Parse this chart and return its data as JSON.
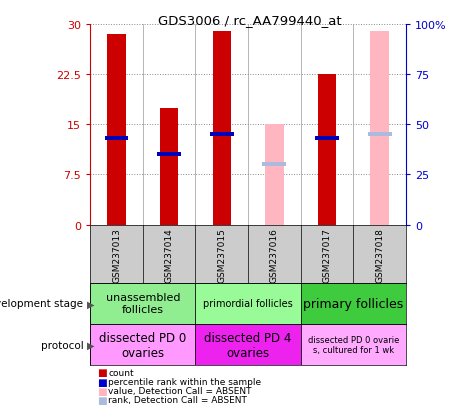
{
  "title": "GDS3006 / rc_AA799440_at",
  "samples": [
    "GSM237013",
    "GSM237014",
    "GSM237015",
    "GSM237016",
    "GSM237017",
    "GSM237018"
  ],
  "red_bars": [
    28.5,
    17.5,
    29.0,
    null,
    22.5,
    null
  ],
  "pink_bars": [
    null,
    null,
    null,
    15.0,
    null,
    29.0
  ],
  "blue_markers": [
    13.0,
    10.5,
    13.5,
    null,
    13.0,
    null
  ],
  "light_blue_markers": [
    null,
    null,
    null,
    9.0,
    null,
    13.5
  ],
  "ylim_left": [
    0,
    30
  ],
  "ylim_right": [
    0,
    100
  ],
  "yticks_left": [
    0,
    7.5,
    15,
    22.5,
    30
  ],
  "yticks_right": [
    0,
    25,
    50,
    75,
    100
  ],
  "ytick_labels_left": [
    "0",
    "7.5",
    "15",
    "22.5",
    "30"
  ],
  "ytick_labels_right": [
    "0",
    "25",
    "50",
    "75",
    "100%"
  ],
  "dev_stage_groups": [
    {
      "label": "unassembled\nfollicles",
      "cols": [
        0,
        1
      ],
      "color": "#90EE90"
    },
    {
      "label": "primordial follicles",
      "cols": [
        2,
        3
      ],
      "color": "#98FB98"
    },
    {
      "label": "primary follicles",
      "cols": [
        4,
        5
      ],
      "color": "#3ECC3E"
    }
  ],
  "protocol_groups": [
    {
      "label": "dissected PD 0\novaries",
      "cols": [
        0,
        1
      ],
      "color": "#FF99FF"
    },
    {
      "label": "dissected PD 4\novaries",
      "cols": [
        2,
        3
      ],
      "color": "#EE22EE"
    },
    {
      "label": "dissected PD 0 ovarie\ns, cultured for 1 wk",
      "cols": [
        4,
        5
      ],
      "color": "#FFAAFF"
    }
  ],
  "legend_items": [
    {
      "label": "count",
      "color": "#CC0000"
    },
    {
      "label": "percentile rank within the sample",
      "color": "#0000CC"
    },
    {
      "label": "value, Detection Call = ABSENT",
      "color": "#FFB6C1"
    },
    {
      "label": "rank, Detection Call = ABSENT",
      "color": "#AABBDD"
    }
  ],
  "bar_width": 0.35,
  "bg_color": "#FFFFFF",
  "plot_bg": "#FFFFFF",
  "grid_color": "#888888",
  "bar_color_red": "#CC0000",
  "bar_color_pink": "#FFB6C1",
  "marker_color_blue": "#0000BB",
  "marker_color_lightblue": "#AABBDD",
  "left_axis_color": "#CC0000",
  "right_axis_color": "#0000CC",
  "sample_row_color": "#CCCCCC",
  "dev_stage_label": "development stage",
  "protocol_label": "protocol"
}
